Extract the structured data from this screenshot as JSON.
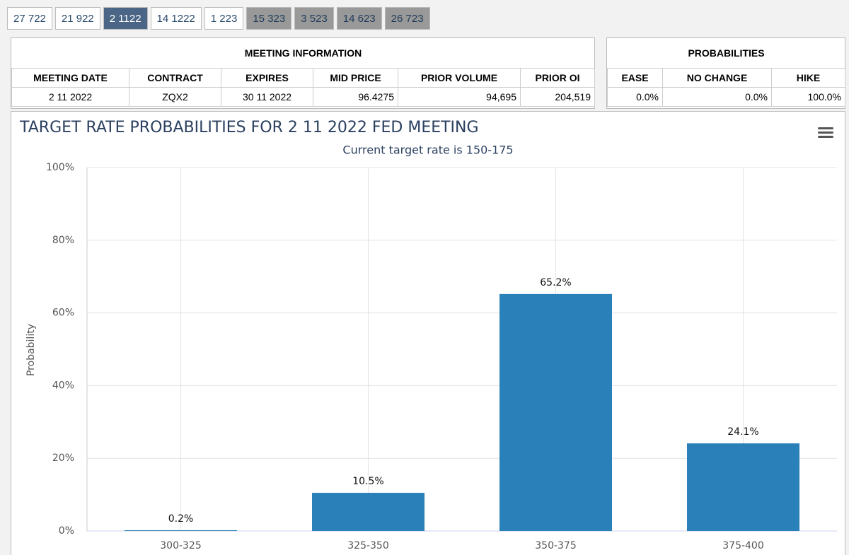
{
  "tabs": [
    "27 722",
    "21 922",
    "2 1122",
    "14 1222",
    "1 223",
    "15 323",
    "3 523",
    "14 623",
    "26 723"
  ],
  "meeting_info": {
    "title": "MEETING INFORMATION",
    "headers": [
      "MEETING DATE",
      "CONTRACT",
      "EXPIRES",
      "MID PRICE",
      "PRIOR VOLUME",
      "PRIOR OI"
    ],
    "row": [
      "2 11 2022",
      "ZQX2",
      "30 11 2022",
      "96.4275",
      "94,695",
      "204,519"
    ]
  },
  "probabilities": {
    "title": "PROBABILITIES",
    "headers": [
      "EASE",
      "NO CHANGE",
      "HIKE"
    ],
    "row": [
      "0.0%",
      "0.0%",
      "100.0%"
    ]
  },
  "chart_data": {
    "type": "bar",
    "title": "TARGET RATE PROBABILITIES FOR 2 11 2022 FED MEETING",
    "subtitle": "Current target rate is 150-175",
    "y_label": "Probability",
    "categories": [
      "300-325",
      "325-350",
      "350-375",
      "375-400"
    ],
    "values": [
      0.2,
      10.5,
      65.2,
      24.1
    ],
    "value_labels": [
      "0.2%",
      "10.5%",
      "65.2%",
      "24.1%"
    ],
    "color": "#2a80b9",
    "ylim": [
      0,
      100
    ],
    "yticks": [
      {
        "value": 0,
        "label": "0%"
      },
      {
        "value": 20,
        "label": "20%"
      },
      {
        "value": 40,
        "label": "40%"
      },
      {
        "value": 60,
        "label": "60%"
      },
      {
        "value": 80,
        "label": "80%"
      },
      {
        "value": 100,
        "label": "100%"
      }
    ],
    "grid": true
  }
}
